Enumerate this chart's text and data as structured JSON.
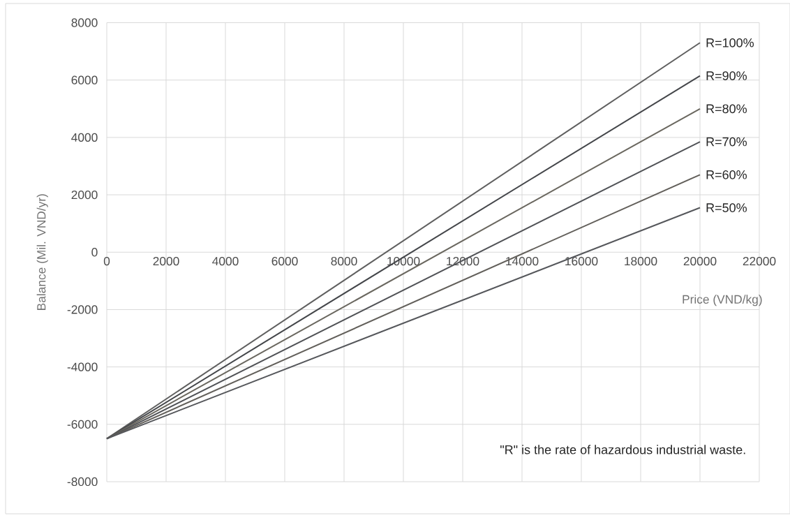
{
  "chart_data": {
    "type": "line",
    "xlabel": "Price (VND/kg)",
    "ylabel": "Balance (Mil. VND/yr)",
    "x": [
      0,
      20000
    ],
    "series": [
      {
        "name": "R=100%",
        "color": "#5f5f5f",
        "values": [
          -6500,
          7300
        ]
      },
      {
        "name": "R=90%",
        "color": "#44464a",
        "values": [
          -6500,
          6150
        ]
      },
      {
        "name": "R=80%",
        "color": "#6a675f",
        "values": [
          -6500,
          5000
        ]
      },
      {
        "name": "R=70%",
        "color": "#505256",
        "values": [
          -6500,
          3850
        ]
      },
      {
        "name": "R=60%",
        "color": "#625f5a",
        "values": [
          -6500,
          2700
        ]
      },
      {
        "name": "R=50%",
        "color": "#55575b",
        "values": [
          -6500,
          1550
        ]
      }
    ],
    "xlim": [
      0,
      22000
    ],
    "xticks": [
      0,
      2000,
      4000,
      6000,
      8000,
      10000,
      12000,
      14000,
      16000,
      18000,
      20000,
      22000
    ],
    "ylim": [
      -8000,
      8000
    ],
    "yticks": [
      -8000,
      -6000,
      -4000,
      -2000,
      0,
      2000,
      4000,
      6000,
      8000
    ],
    "grid": true,
    "marker": "none",
    "line_style": "solid",
    "annotations": [
      "\"R\" is the rate of hazardous industrial waste."
    ]
  }
}
